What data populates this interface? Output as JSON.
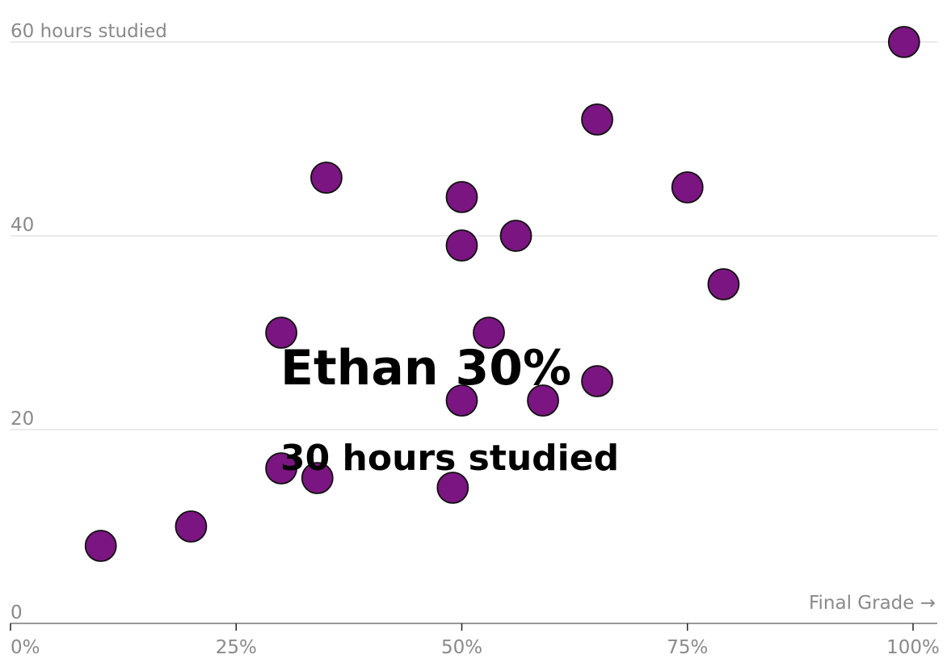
{
  "chart_data": {
    "type": "scatter",
    "title": "",
    "xlabel": "Final Grade →",
    "ylabel": "hours studied",
    "xlim": [
      0,
      100
    ],
    "ylim": [
      0,
      60
    ],
    "x_tick_labels": [
      "0%",
      "25%",
      "50%",
      "75%",
      "100%"
    ],
    "x_tick_values": [
      0,
      25,
      50,
      75,
      100
    ],
    "y_tick_labels": [
      "0",
      "20",
      "40",
      "60 hours studied"
    ],
    "y_tick_values": [
      0,
      20,
      40,
      60
    ],
    "grid": true,
    "point_color": "#7b1581",
    "points": [
      {
        "x": 10,
        "y": 8
      },
      {
        "x": 20,
        "y": 10
      },
      {
        "x": 30,
        "y": 16
      },
      {
        "x": 34,
        "y": 15
      },
      {
        "x": 30,
        "y": 30
      },
      {
        "x": 35,
        "y": 46
      },
      {
        "x": 49,
        "y": 14
      },
      {
        "x": 50,
        "y": 23
      },
      {
        "x": 50,
        "y": 39
      },
      {
        "x": 50,
        "y": 44
      },
      {
        "x": 53,
        "y": 30
      },
      {
        "x": 56,
        "y": 40
      },
      {
        "x": 59,
        "y": 23
      },
      {
        "x": 65,
        "y": 25
      },
      {
        "x": 65,
        "y": 52
      },
      {
        "x": 75,
        "y": 45
      },
      {
        "x": 79,
        "y": 35
      },
      {
        "x": 99,
        "y": 60
      }
    ],
    "annotation": {
      "name_line": "Ethan 30%",
      "value_line": "30 hours studied"
    }
  }
}
